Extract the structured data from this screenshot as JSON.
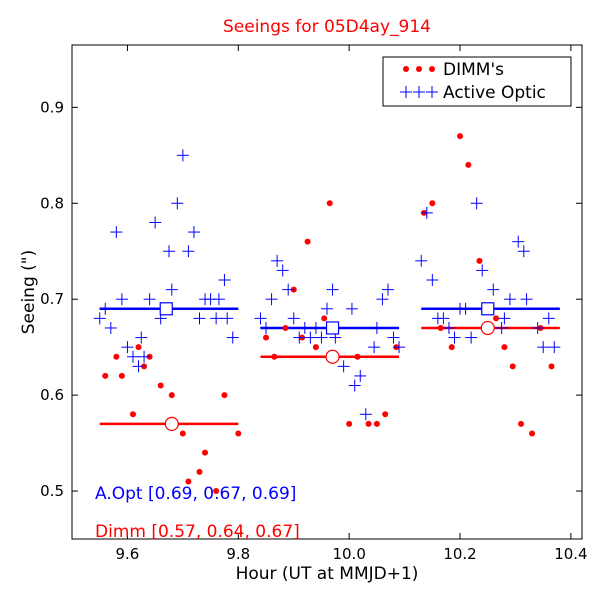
{
  "chart_data": {
    "type": "scatter",
    "title": "Seeings for 05D4ay_914",
    "xlabel": "Hour (UT at MMJD+1)",
    "ylabel": "Seeing (\")",
    "xlim": [
      9.5,
      10.42
    ],
    "ylim": [
      0.45,
      0.965
    ],
    "xticks": [
      9.6,
      9.8,
      10.0,
      10.2,
      10.4
    ],
    "xtick_labels": [
      "9.6",
      "9.8",
      "10.0",
      "10.2",
      "10.4"
    ],
    "yticks": [
      0.5,
      0.6,
      0.7,
      0.8,
      0.9
    ],
    "ytick_labels": [
      "0.5",
      "0.6",
      "0.7",
      "0.8",
      "0.9"
    ],
    "grid": false,
    "legend_position": "top-right",
    "series": [
      {
        "name": "DIMM's",
        "color": "#ff0000",
        "marker": "dot",
        "points": [
          [
            9.56,
            0.62
          ],
          [
            9.58,
            0.64
          ],
          [
            9.59,
            0.62
          ],
          [
            9.61,
            0.58
          ],
          [
            9.62,
            0.65
          ],
          [
            9.63,
            0.63
          ],
          [
            9.64,
            0.64
          ],
          [
            9.66,
            0.61
          ],
          [
            9.68,
            0.6
          ],
          [
            9.7,
            0.56
          ],
          [
            9.71,
            0.51
          ],
          [
            9.73,
            0.52
          ],
          [
            9.74,
            0.54
          ],
          [
            9.76,
            0.5
          ],
          [
            9.775,
            0.6
          ],
          [
            9.8,
            0.56
          ],
          [
            9.85,
            0.66
          ],
          [
            9.865,
            0.64
          ],
          [
            9.885,
            0.67
          ],
          [
            9.9,
            0.71
          ],
          [
            9.915,
            0.66
          ],
          [
            9.925,
            0.76
          ],
          [
            9.94,
            0.65
          ],
          [
            9.955,
            0.68
          ],
          [
            9.965,
            0.8
          ],
          [
            10.0,
            0.57
          ],
          [
            10.015,
            0.64
          ],
          [
            10.035,
            0.57
          ],
          [
            10.05,
            0.57
          ],
          [
            10.065,
            0.58
          ],
          [
            10.085,
            0.65
          ],
          [
            10.135,
            0.79
          ],
          [
            10.15,
            0.8
          ],
          [
            10.165,
            0.67
          ],
          [
            10.185,
            0.65
          ],
          [
            10.2,
            0.87
          ],
          [
            10.215,
            0.84
          ],
          [
            10.235,
            0.74
          ],
          [
            10.265,
            0.68
          ],
          [
            10.28,
            0.65
          ],
          [
            10.295,
            0.63
          ],
          [
            10.31,
            0.57
          ],
          [
            10.33,
            0.56
          ],
          [
            10.345,
            0.67
          ],
          [
            10.365,
            0.63
          ]
        ]
      },
      {
        "name": "Active Optic",
        "color": "#0000ff",
        "marker": "plus",
        "points": [
          [
            9.55,
            0.68
          ],
          [
            9.56,
            0.69
          ],
          [
            9.57,
            0.67
          ],
          [
            9.58,
            0.77
          ],
          [
            9.59,
            0.7
          ],
          [
            9.6,
            0.65
          ],
          [
            9.61,
            0.64
          ],
          [
            9.62,
            0.63
          ],
          [
            9.625,
            0.66
          ],
          [
            9.63,
            0.64
          ],
          [
            9.64,
            0.7
          ],
          [
            9.65,
            0.78
          ],
          [
            9.66,
            0.68
          ],
          [
            9.67,
            0.69
          ],
          [
            9.675,
            0.75
          ],
          [
            9.68,
            0.71
          ],
          [
            9.69,
            0.8
          ],
          [
            9.7,
            0.85
          ],
          [
            9.71,
            0.75
          ],
          [
            9.72,
            0.77
          ],
          [
            9.73,
            0.68
          ],
          [
            9.74,
            0.7
          ],
          [
            9.75,
            0.7
          ],
          [
            9.76,
            0.68
          ],
          [
            9.765,
            0.7
          ],
          [
            9.775,
            0.72
          ],
          [
            9.78,
            0.68
          ],
          [
            9.79,
            0.66
          ],
          [
            9.84,
            0.68
          ],
          [
            9.85,
            0.67
          ],
          [
            9.86,
            0.7
          ],
          [
            9.87,
            0.74
          ],
          [
            9.88,
            0.73
          ],
          [
            9.89,
            0.71
          ],
          [
            9.9,
            0.68
          ],
          [
            9.91,
            0.66
          ],
          [
            9.92,
            0.67
          ],
          [
            9.93,
            0.66
          ],
          [
            9.94,
            0.67
          ],
          [
            9.95,
            0.66
          ],
          [
            9.96,
            0.69
          ],
          [
            9.97,
            0.71
          ],
          [
            9.975,
            0.66
          ],
          [
            9.99,
            0.63
          ],
          [
            10.005,
            0.69
          ],
          [
            10.01,
            0.61
          ],
          [
            10.02,
            0.62
          ],
          [
            10.03,
            0.58
          ],
          [
            10.045,
            0.65
          ],
          [
            10.05,
            0.67
          ],
          [
            10.06,
            0.7
          ],
          [
            10.07,
            0.71
          ],
          [
            10.08,
            0.66
          ],
          [
            10.09,
            0.65
          ],
          [
            10.13,
            0.74
          ],
          [
            10.14,
            0.79
          ],
          [
            10.15,
            0.72
          ],
          [
            10.16,
            0.68
          ],
          [
            10.17,
            0.68
          ],
          [
            10.18,
            0.67
          ],
          [
            10.19,
            0.66
          ],
          [
            10.2,
            0.69
          ],
          [
            10.21,
            0.69
          ],
          [
            10.22,
            0.66
          ],
          [
            10.23,
            0.8
          ],
          [
            10.24,
            0.73
          ],
          [
            10.26,
            0.71
          ],
          [
            10.275,
            0.67
          ],
          [
            10.28,
            0.68
          ],
          [
            10.29,
            0.7
          ],
          [
            10.305,
            0.76
          ],
          [
            10.315,
            0.75
          ],
          [
            10.32,
            0.7
          ],
          [
            10.34,
            0.67
          ],
          [
            10.35,
            0.65
          ],
          [
            10.36,
            0.68
          ],
          [
            10.37,
            0.65
          ]
        ]
      }
    ],
    "summary_lines": [
      {
        "series": "Active Optic",
        "color": "#0000ff",
        "x_start": 9.55,
        "x_end": 9.8,
        "value": 0.69,
        "center_x": 9.67,
        "marker": "square"
      },
      {
        "series": "Active Optic",
        "color": "#0000ff",
        "x_start": 9.84,
        "x_end": 10.09,
        "value": 0.67,
        "center_x": 9.97,
        "marker": "square"
      },
      {
        "series": "Active Optic",
        "color": "#0000ff",
        "x_start": 10.13,
        "x_end": 10.38,
        "value": 0.69,
        "center_x": 10.25,
        "marker": "square"
      },
      {
        "series": "DIMM's",
        "color": "#ff0000",
        "x_start": 9.55,
        "x_end": 9.8,
        "value": 0.57,
        "center_x": 9.68,
        "marker": "circle"
      },
      {
        "series": "DIMM's",
        "color": "#ff0000",
        "x_start": 9.84,
        "x_end": 10.09,
        "value": 0.64,
        "center_x": 9.97,
        "marker": "circle"
      },
      {
        "series": "DIMM's",
        "color": "#ff0000",
        "x_start": 10.13,
        "x_end": 10.38,
        "value": 0.67,
        "center_x": 10.25,
        "marker": "circle"
      }
    ],
    "annotations": [
      {
        "text": "A.Opt [0.69, 0.67, 0.69]",
        "color": "#0000ff"
      },
      {
        "text": "Dimm [0.57, 0.64, 0.67]",
        "color": "#ff0000"
      }
    ]
  }
}
